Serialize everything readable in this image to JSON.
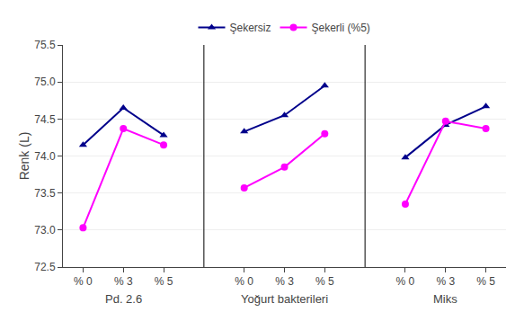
{
  "chart_data": {
    "type": "line",
    "categories": [
      "% 0",
      "% 3",
      "% 5",
      "% 0",
      "% 3",
      "% 5",
      "% 0",
      "% 3",
      "% 5"
    ],
    "groups": [
      "Pd. 2.6",
      "Yoğurt bakterileri",
      "Miks"
    ],
    "ylabel": "Renk (L)",
    "series": [
      {
        "name": "Şekersiz",
        "color": "#00008B",
        "marker": "triangle",
        "values": [
          74.15,
          74.65,
          74.28,
          74.33,
          74.55,
          74.95,
          73.98,
          74.42,
          74.67
        ]
      },
      {
        "name": "Şekerli (%5)",
        "color": "#FF00FF",
        "marker": "circle",
        "values": [
          73.03,
          74.37,
          74.15,
          73.57,
          73.85,
          74.3,
          73.35,
          74.47,
          74.37
        ]
      }
    ],
    "ylim": [
      72.5,
      75.5
    ],
    "yticks": [
      72.5,
      {
        "value": 73,
        "label": "73.0"
      },
      73.5,
      {
        "value": 74,
        "label": "74.0"
      },
      74.5,
      {
        "value": 75,
        "label": "75.0"
      },
      75.5
    ],
    "grid": true,
    "legend": "top"
  }
}
